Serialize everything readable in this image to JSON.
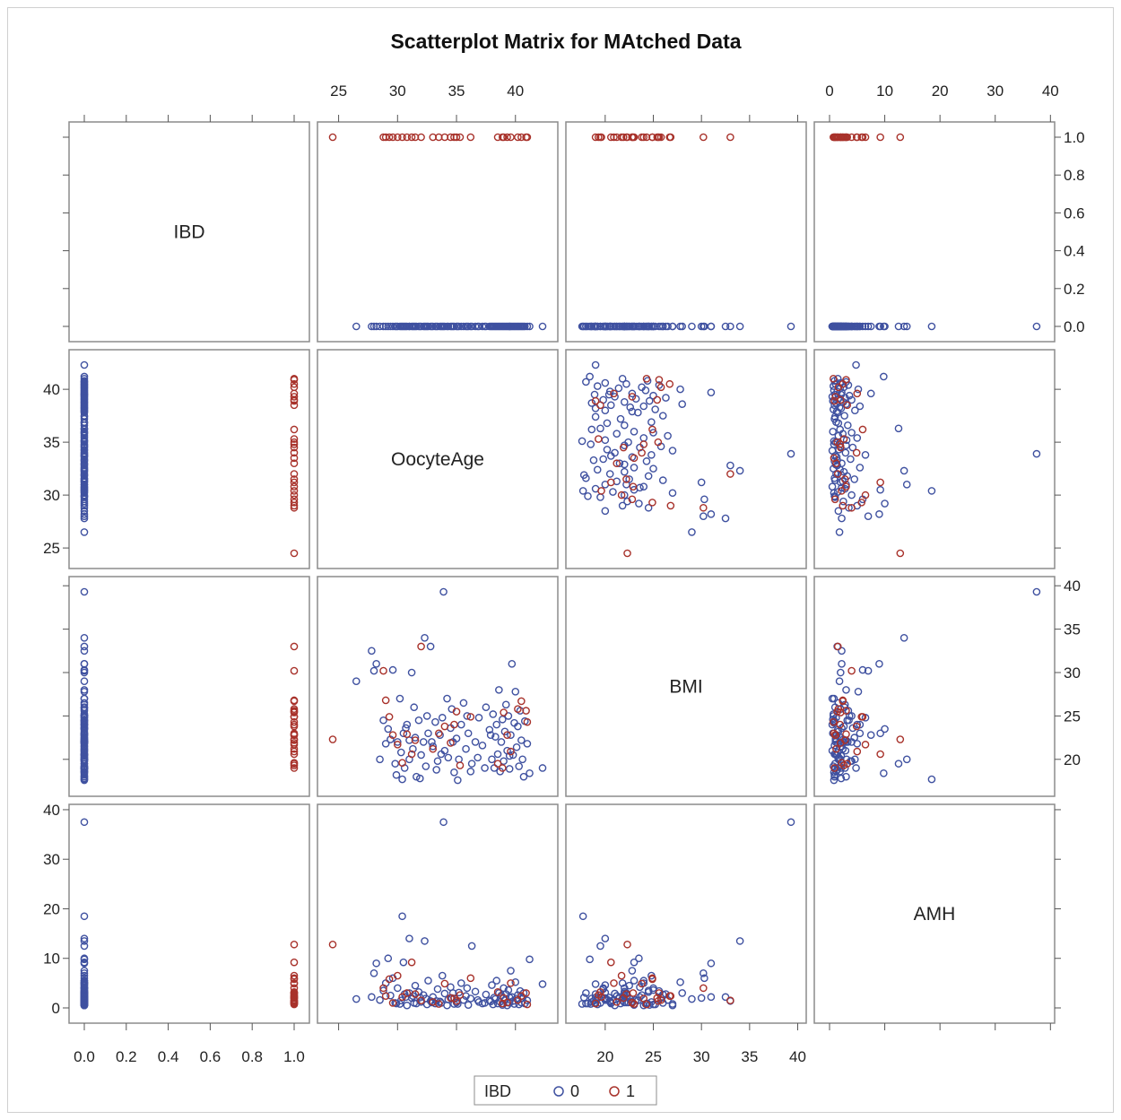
{
  "chart_data": {
    "type": "scatter",
    "title": "Scatterplot Matrix for MAtched Data",
    "variables": [
      "IBD",
      "OocyteAge",
      "BMI",
      "AMH"
    ],
    "ranges": {
      "IBD": [
        0,
        1
      ],
      "OocyteAge": [
        24.5,
        42.3
      ],
      "BMI": [
        17.5,
        39.3
      ],
      "AMH": [
        0,
        38
      ]
    },
    "ticks": {
      "IBD": [
        "0.0",
        "0.2",
        "0.4",
        "0.6",
        "0.8",
        "1.0"
      ],
      "OocyteAge": [
        "25",
        "30",
        "35",
        "40"
      ],
      "BMI": [
        "20",
        "25",
        "30",
        "35",
        "40"
      ],
      "AMH": [
        "0",
        "10",
        "20",
        "30",
        "40"
      ]
    },
    "legend": {
      "title": "IBD",
      "placement": "bottom",
      "entries": [
        {
          "label": "0",
          "color": "#3f51a0"
        },
        {
          "label": "1",
          "color": "#a8322b"
        }
      ]
    },
    "series": [
      {
        "group": "0",
        "color": "#3f51a0",
        "points": [
          [
            26.5,
            29.0,
            1.8
          ],
          [
            27.8,
            32.5,
            2.2
          ],
          [
            28.0,
            30.2,
            7.0
          ],
          [
            28.2,
            31.0,
            9.0
          ],
          [
            28.8,
            24.5,
            3.5
          ],
          [
            29.0,
            21.8,
            5.0
          ],
          [
            29.2,
            23.5,
            10.0
          ],
          [
            29.4,
            22.3,
            2.5
          ],
          [
            29.6,
            30.3,
            6.0
          ],
          [
            29.8,
            19.5,
            1.0
          ],
          [
            30.0,
            22.0,
            4.0
          ],
          [
            30.2,
            27.0,
            0.8
          ],
          [
            30.3,
            20.8,
            1.5
          ],
          [
            30.5,
            23.0,
            9.2
          ],
          [
            30.6,
            19.0,
            2.8
          ],
          [
            30.8,
            24.0,
            0.5
          ],
          [
            31.0,
            22.2,
            3.0
          ],
          [
            31.0,
            20.0,
            14.0
          ],
          [
            31.2,
            30.0,
            2.0
          ],
          [
            31.4,
            26.0,
            1.0
          ],
          [
            31.5,
            22.5,
            4.5
          ],
          [
            31.6,
            18.0,
            0.9
          ],
          [
            31.8,
            24.5,
            3.2
          ],
          [
            32.0,
            20.5,
            1.2
          ],
          [
            32.2,
            22.0,
            2.6
          ],
          [
            32.4,
            19.2,
            1.9
          ],
          [
            32.5,
            25.0,
            0.7
          ],
          [
            32.6,
            23.0,
            5.5
          ],
          [
            32.8,
            33.0,
            1.4
          ],
          [
            33.0,
            21.5,
            2.2
          ],
          [
            33.2,
            24.3,
            0.9
          ],
          [
            33.4,
            19.8,
            3.8
          ],
          [
            33.6,
            22.8,
            1.3
          ],
          [
            33.8,
            24.8,
            6.5
          ],
          [
            34.0,
            21.0,
            2.9
          ],
          [
            34.2,
            27.0,
            0.5
          ],
          [
            34.3,
            20.2,
            1.7
          ],
          [
            34.5,
            23.6,
            4.2
          ],
          [
            34.6,
            25.8,
            2.0
          ],
          [
            34.8,
            18.5,
            0.8
          ],
          [
            35.0,
            22.4,
            1.1
          ],
          [
            35.2,
            20.0,
            3.1
          ],
          [
            35.4,
            24.0,
            5.0
          ],
          [
            35.6,
            26.5,
            1.6
          ],
          [
            35.8,
            21.2,
            2.4
          ],
          [
            36.0,
            23.0,
            0.6
          ],
          [
            36.3,
            19.5,
            12.5
          ],
          [
            36.6,
            22.0,
            3.3
          ],
          [
            36.9,
            24.8,
            1.2
          ],
          [
            37.2,
            21.6,
            0.9
          ],
          [
            37.5,
            26.0,
            2.7
          ],
          [
            37.8,
            23.4,
            1.5
          ],
          [
            38.0,
            20.0,
            4.6
          ],
          [
            38.1,
            25.2,
            0.7
          ],
          [
            38.2,
            19.0,
            2.1
          ],
          [
            38.3,
            22.6,
            1.8
          ],
          [
            38.4,
            24.0,
            5.5
          ],
          [
            38.5,
            20.6,
            0.9
          ],
          [
            38.6,
            28.0,
            3.0
          ],
          [
            38.7,
            18.6,
            1.2
          ],
          [
            38.8,
            22.0,
            2.5
          ],
          [
            38.9,
            24.6,
            0.6
          ],
          [
            39.0,
            19.8,
            4.0
          ],
          [
            39.1,
            23.2,
            1.6
          ],
          [
            39.2,
            26.3,
            2.8
          ],
          [
            39.3,
            21.0,
            0.5
          ],
          [
            39.4,
            25.0,
            3.6
          ],
          [
            39.5,
            18.9,
            1.0
          ],
          [
            39.6,
            22.8,
            7.5
          ],
          [
            39.7,
            31.0,
            2.2
          ],
          [
            39.8,
            20.5,
            1.4
          ],
          [
            39.9,
            24.2,
            0.8
          ],
          [
            40.0,
            27.8,
            5.2
          ],
          [
            40.1,
            21.4,
            1.9
          ],
          [
            40.2,
            23.8,
            2.6
          ],
          [
            40.3,
            19.2,
            0.7
          ],
          [
            40.4,
            25.6,
            3.4
          ],
          [
            40.5,
            22.2,
            1.1
          ],
          [
            40.6,
            20.0,
            2.0
          ],
          [
            40.8,
            24.4,
            0.9
          ],
          [
            41.0,
            21.8,
            1.5
          ],
          [
            41.2,
            18.4,
            9.8
          ],
          [
            42.3,
            19.0,
            4.8
          ],
          [
            28.5,
            20.0,
            1.6
          ],
          [
            29.9,
            18.2,
            0.9
          ],
          [
            31.9,
            17.8,
            2.1
          ],
          [
            33.3,
            18.8,
            1.4
          ],
          [
            35.1,
            17.6,
            0.8
          ],
          [
            36.2,
            18.6,
            1.9
          ],
          [
            37.4,
            19.0,
            1.0
          ],
          [
            31.3,
            21.2,
            2.4
          ],
          [
            32.9,
            22.0,
            1.1
          ],
          [
            34.7,
            22.0,
            3.0
          ],
          [
            36.8,
            20.2,
            1.6
          ],
          [
            30.7,
            23.6,
            2.2
          ],
          [
            33.7,
            20.6,
            1.0
          ],
          [
            35.9,
            25.0,
            4.0
          ],
          [
            37.9,
            22.8,
            1.3
          ],
          [
            39.5,
            20.4,
            2.1
          ],
          [
            40.7,
            18.0,
            3.0
          ],
          [
            30.4,
            17.7,
            18.5
          ],
          [
            33.9,
            39.3,
            37.5
          ],
          [
            32.3,
            34.0,
            13.5
          ]
        ]
      },
      {
        "group": "1",
        "color": "#a8322b",
        "points": [
          [
            24.5,
            22.3,
            12.8
          ],
          [
            28.8,
            30.2,
            4.0
          ],
          [
            29.0,
            26.8,
            2.4
          ],
          [
            29.3,
            24.9,
            5.8
          ],
          [
            29.6,
            22.8,
            1.0
          ],
          [
            30.0,
            21.7,
            6.5
          ],
          [
            30.4,
            19.6,
            2.2
          ],
          [
            30.8,
            22.9,
            3.0
          ],
          [
            31.2,
            20.6,
            9.2
          ],
          [
            33.0,
            21.2,
            1.2
          ],
          [
            33.5,
            23.0,
            0.8
          ],
          [
            34.0,
            23.8,
            4.9
          ],
          [
            34.5,
            21.9,
            2.0
          ],
          [
            35.0,
            25.5,
            1.4
          ],
          [
            35.3,
            19.3,
            2.6
          ],
          [
            36.2,
            24.9,
            6.0
          ],
          [
            38.5,
            19.5,
            3.2
          ],
          [
            38.9,
            19.0,
            0.9
          ],
          [
            39.0,
            25.4,
            2.0
          ],
          [
            39.3,
            22.8,
            1.1
          ],
          [
            39.6,
            20.9,
            5.0
          ],
          [
            40.2,
            25.8,
            1.6
          ],
          [
            40.5,
            26.7,
            2.4
          ],
          [
            40.9,
            25.6,
            3.0
          ],
          [
            41.0,
            24.3,
            0.7
          ],
          [
            32.0,
            33.0,
            1.5
          ],
          [
            31.5,
            22.2,
            2.8
          ],
          [
            34.8,
            24.0,
            1.9
          ]
        ]
      }
    ]
  }
}
